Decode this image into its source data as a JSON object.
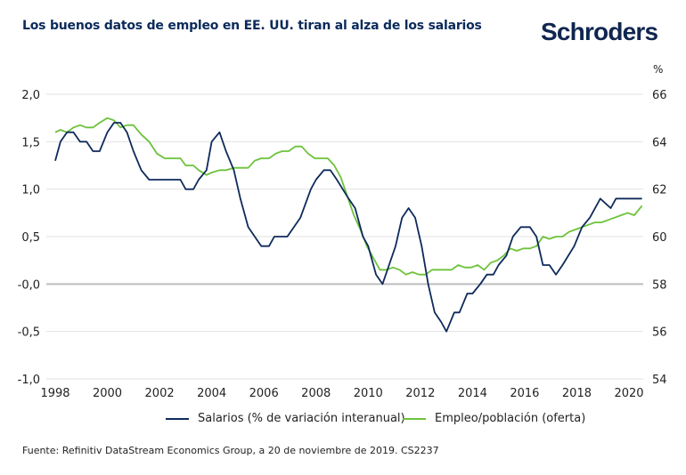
{
  "header": {
    "title": "Los buenos datos de empleo en EE. UU. tiran al alza de los salarios",
    "logo": "Schroders"
  },
  "colors": {
    "salarios": "#0e2a5c",
    "empleo": "#6cc23a",
    "grid": "#e2e2e2",
    "zero_line": "#bdbdbd",
    "title": "#0b2a5b"
  },
  "source": "Fuente: Refinitiv DataStream Economics Group, a 20 de noviembre de 2019. CS2237",
  "chart_data": {
    "type": "line",
    "title": "Los buenos datos de empleo en EE. UU. tiran al alza de los salarios",
    "xlabel": "",
    "ylabel_left": "",
    "ylabel_right": "%",
    "xlim": [
      1998,
      2020.5
    ],
    "ylim_left": [
      -1.0,
      2.0
    ],
    "ylim_right": [
      54,
      66
    ],
    "x_ticks": [
      "1998",
      "2000",
      "2002",
      "2004",
      "2006",
      "2008",
      "2010",
      "2012",
      "2014",
      "2016",
      "2018",
      "2020"
    ],
    "y_ticks_left": [
      "2,0",
      "1,5",
      "1,0",
      "0,5",
      "-0,0",
      "-0,5",
      "-1,0"
    ],
    "y_ticks_left_values": [
      2.0,
      1.5,
      1.0,
      0.5,
      0.0,
      -0.5,
      -1.0
    ],
    "y_ticks_right": [
      "66",
      "64",
      "62",
      "60",
      "58",
      "56",
      "54"
    ],
    "y_ticks_right_values": [
      66,
      64,
      62,
      60,
      58,
      56,
      54
    ],
    "grid": true,
    "legend_position": "bottom",
    "series": [
      {
        "name": "Salarios (% de variación interanual)",
        "axis": "left",
        "color": "#0e2a5c",
        "x": [
          1998.0,
          1998.2,
          1998.45,
          1998.7,
          1998.95,
          1999.2,
          1999.45,
          1999.7,
          2000.0,
          2000.25,
          2000.5,
          2000.75,
          2001.0,
          2001.3,
          2001.6,
          2001.9,
          2002.2,
          2002.5,
          2002.8,
          2003.0,
          2003.3,
          2003.5,
          2003.8,
          2004.0,
          2004.3,
          2004.55,
          2004.85,
          2005.1,
          2005.4,
          2005.9,
          2006.2,
          2006.4,
          2006.9,
          2007.4,
          2007.8,
          2008.0,
          2008.3,
          2008.55,
          2008.8,
          2009.25,
          2009.5,
          2009.8,
          2010.0,
          2010.3,
          2010.55,
          2010.8,
          2011.05,
          2011.3,
          2011.55,
          2011.8,
          2012.05,
          2012.3,
          2012.55,
          2012.8,
          2013.0,
          2013.3,
          2013.5,
          2013.8,
          2014.0,
          2014.3,
          2014.55,
          2014.8,
          2015.0,
          2015.3,
          2015.55,
          2015.85,
          2016.2,
          2016.45,
          2016.7,
          2016.95,
          2017.2,
          2017.45,
          2017.9,
          2018.2,
          2018.5,
          2018.9,
          2019.3,
          2019.5,
          2019.8,
          2020.1,
          2020.5
        ],
        "values": [
          1.3,
          1.5,
          1.6,
          1.6,
          1.5,
          1.5,
          1.4,
          1.4,
          1.6,
          1.7,
          1.7,
          1.6,
          1.4,
          1.2,
          1.1,
          1.1,
          1.1,
          1.1,
          1.1,
          1.0,
          1.0,
          1.1,
          1.2,
          1.5,
          1.6,
          1.4,
          1.2,
          0.9,
          0.6,
          0.4,
          0.4,
          0.5,
          0.5,
          0.7,
          1.0,
          1.1,
          1.2,
          1.2,
          1.1,
          0.9,
          0.8,
          0.5,
          0.4,
          0.1,
          0.0,
          0.2,
          0.4,
          0.7,
          0.8,
          0.7,
          0.4,
          0.0,
          -0.3,
          -0.4,
          -0.5,
          -0.3,
          -0.3,
          -0.1,
          -0.1,
          0.0,
          0.1,
          0.1,
          0.2,
          0.3,
          0.5,
          0.6,
          0.6,
          0.5,
          0.2,
          0.2,
          0.1,
          0.2,
          0.4,
          0.6,
          0.7,
          0.9,
          0.8,
          0.9,
          0.9,
          0.9,
          0.9
        ]
      },
      {
        "name": "Empleo/población (oferta)",
        "axis": "right",
        "color": "#6cc23a",
        "x": [
          1998.0,
          1998.2,
          1998.45,
          1998.7,
          1998.95,
          1999.2,
          1999.45,
          1999.7,
          2000.0,
          2000.25,
          2000.5,
          2000.75,
          2001.0,
          2001.3,
          2001.6,
          2001.9,
          2002.2,
          2002.5,
          2002.8,
          2003.0,
          2003.3,
          2003.5,
          2003.8,
          2004.0,
          2004.3,
          2004.55,
          2004.85,
          2005.1,
          2005.4,
          2005.65,
          2005.9,
          2006.2,
          2006.45,
          2006.7,
          2006.95,
          2007.2,
          2007.45,
          2007.7,
          2007.95,
          2008.2,
          2008.45,
          2008.7,
          2008.95,
          2009.2,
          2009.45,
          2009.7,
          2009.95,
          2010.2,
          2010.45,
          2010.7,
          2010.95,
          2011.2,
          2011.45,
          2011.7,
          2011.95,
          2012.2,
          2012.45,
          2012.7,
          2012.95,
          2013.2,
          2013.45,
          2013.7,
          2013.95,
          2014.2,
          2014.45,
          2014.7,
          2014.95,
          2015.2,
          2015.45,
          2015.7,
          2015.95,
          2016.2,
          2016.45,
          2016.7,
          2016.95,
          2017.2,
          2017.45,
          2017.7,
          2017.95,
          2018.2,
          2018.45,
          2018.7,
          2018.95,
          2019.2,
          2019.45,
          2019.7,
          2019.95,
          2020.2,
          2020.5
        ],
        "values": [
          64.4,
          64.5,
          64.4,
          64.6,
          64.7,
          64.6,
          64.6,
          64.8,
          65.0,
          64.9,
          64.6,
          64.7,
          64.7,
          64.3,
          64.0,
          63.5,
          63.3,
          63.3,
          63.3,
          63.0,
          63.0,
          62.8,
          62.6,
          62.7,
          62.8,
          62.8,
          62.9,
          62.9,
          62.9,
          63.2,
          63.3,
          63.3,
          63.5,
          63.6,
          63.6,
          63.8,
          63.8,
          63.5,
          63.3,
          63.3,
          63.3,
          63.0,
          62.5,
          61.7,
          60.9,
          60.3,
          59.6,
          59.1,
          58.6,
          58.6,
          58.7,
          58.6,
          58.4,
          58.5,
          58.4,
          58.4,
          58.6,
          58.6,
          58.6,
          58.6,
          58.8,
          58.7,
          58.7,
          58.8,
          58.6,
          58.9,
          59.0,
          59.2,
          59.5,
          59.4,
          59.5,
          59.5,
          59.6,
          60.0,
          59.9,
          60.0,
          60.0,
          60.2,
          60.3,
          60.4,
          60.5,
          60.6,
          60.6,
          60.7,
          60.8,
          60.9,
          61.0,
          60.9,
          61.3
        ]
      }
    ]
  }
}
